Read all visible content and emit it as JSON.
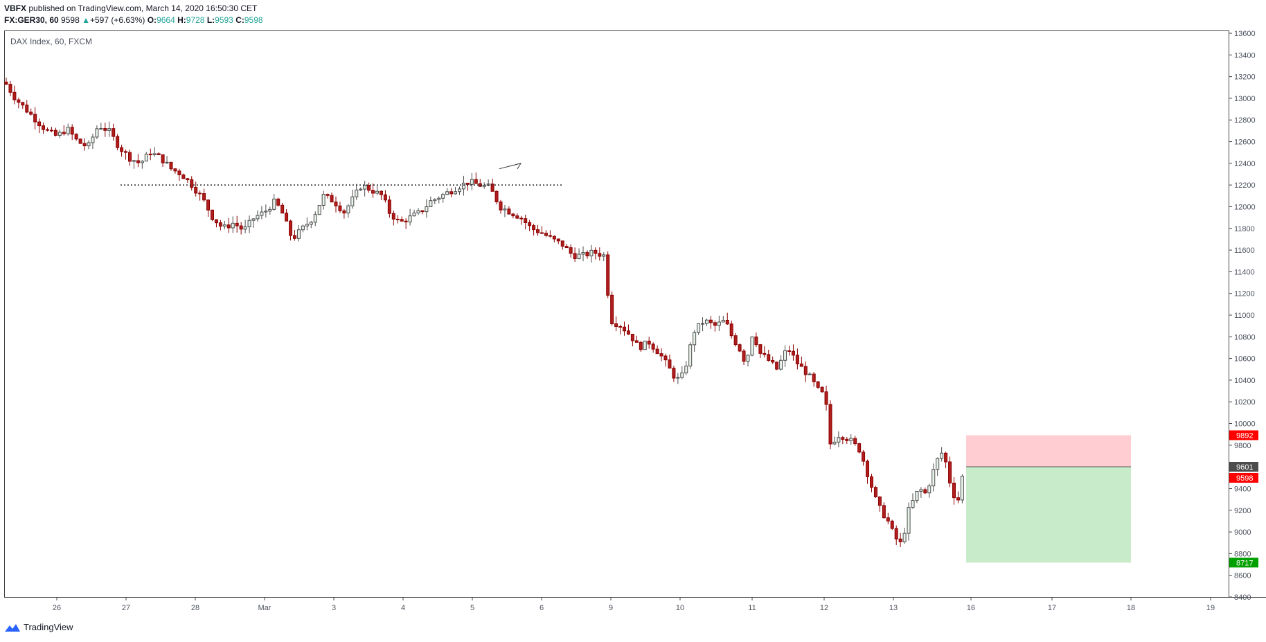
{
  "header": {
    "publisher": "VBFX",
    "published_text": "published on TradingView.com, March 14, 2020 16:50:30 CET",
    "symbol": "FX:GER30, 60",
    "last": "9598",
    "change": "+597 (+6.63%)",
    "open_label": "O:",
    "open": "9664",
    "high_label": "H:",
    "high": "9728",
    "low_label": "L:",
    "low": "9593",
    "close_label": "C:",
    "close": "9598",
    "up_arrow_icon": "triangle-up-icon"
  },
  "pane_title": "DAX Index, 60, FXCM",
  "footer": {
    "brand": "TradingView",
    "logo_icon": "tradingview-logo-icon"
  },
  "colors": {
    "up": "#26a69a",
    "down": "#c0392b",
    "candle_up_fill": "#ffffff",
    "stop_zone": "#ffcdd2",
    "target_zone": "#c8ebc9",
    "stop_badge": "#ff0000",
    "target_badge": "#00a000",
    "entry_badge": "#4c4c4c",
    "last_badge": "#ff0000",
    "axis_text": "#4c525e",
    "border": "#444444"
  },
  "chart_data": {
    "type": "candlestick",
    "title": "DAX Index, 60, FXCM",
    "ylim": [
      8400,
      13600
    ],
    "y_ticks": [
      8400,
      8600,
      8800,
      9000,
      9200,
      9400,
      9600,
      9800,
      10000,
      10200,
      10400,
      10600,
      10800,
      11000,
      11200,
      11400,
      11600,
      11800,
      12000,
      12200,
      12400,
      12600,
      12800,
      13000,
      13200,
      13400,
      13600
    ],
    "x_ticks": [
      {
        "label": "26",
        "x": 0.75
      },
      {
        "label": "27",
        "x": 1.75
      },
      {
        "label": "28",
        "x": 2.75
      },
      {
        "label": "Mar",
        "x": 3.75
      },
      {
        "label": "3",
        "x": 4.75
      },
      {
        "label": "4",
        "x": 5.75
      },
      {
        "label": "5",
        "x": 6.75
      },
      {
        "label": "6",
        "x": 7.75
      },
      {
        "label": "9",
        "x": 8.75
      },
      {
        "label": "10",
        "x": 9.75
      },
      {
        "label": "11",
        "x": 10.79
      },
      {
        "label": "12",
        "x": 11.83
      },
      {
        "label": "13",
        "x": 12.83
      },
      {
        "label": "16",
        "x": 13.95
      },
      {
        "label": "17",
        "x": 15.12
      },
      {
        "label": "18",
        "x": 16.26
      },
      {
        "label": "19",
        "x": 17.41
      }
    ],
    "x_range": [
      0,
      17.7
    ],
    "resistance_line": {
      "price": 12200,
      "x_start": 1.67,
      "x_end": 8.05,
      "style": "dotted"
    },
    "annotation_arrow": {
      "x1": 7.14,
      "y1": 12350,
      "x2": 7.45,
      "y2": 12400
    },
    "position": {
      "side": "short",
      "entry": 9601,
      "stop": 9892,
      "target": 8717,
      "x_start": 13.88,
      "x_end": 16.26
    },
    "price_badges": [
      {
        "label": "9892",
        "price": 9892,
        "kind": "stop_badge"
      },
      {
        "label": "9601",
        "price": 9601,
        "kind": "entry_badge"
      },
      {
        "label": "9598",
        "price": 9598,
        "kind": "last_badge"
      },
      {
        "label": "8717",
        "price": 8717,
        "kind": "target_badge"
      }
    ],
    "path": [
      [
        0.0,
        13150
      ],
      [
        0.15,
        13000
      ],
      [
        0.3,
        12900
      ],
      [
        0.45,
        12800
      ],
      [
        0.6,
        12700
      ],
      [
        0.75,
        12650
      ],
      [
        0.9,
        12720
      ],
      [
        1.05,
        12600
      ],
      [
        1.2,
        12550
      ],
      [
        1.35,
        12750
      ],
      [
        1.5,
        12700
      ],
      [
        1.65,
        12550
      ],
      [
        1.8,
        12450
      ],
      [
        1.95,
        12400
      ],
      [
        2.1,
        12500
      ],
      [
        2.25,
        12450
      ],
      [
        2.4,
        12350
      ],
      [
        2.55,
        12300
      ],
      [
        2.7,
        12200
      ],
      [
        2.85,
        12080
      ],
      [
        3.0,
        11900
      ],
      [
        3.15,
        11800
      ],
      [
        3.3,
        11850
      ],
      [
        3.45,
        11780
      ],
      [
        3.6,
        11900
      ],
      [
        3.75,
        11950
      ],
      [
        3.9,
        12050
      ],
      [
        4.0,
        11950
      ],
      [
        4.15,
        11700
      ],
      [
        4.3,
        11800
      ],
      [
        4.45,
        11900
      ],
      [
        4.6,
        12100
      ],
      [
        4.75,
        12050
      ],
      [
        4.9,
        11950
      ],
      [
        5.05,
        12100
      ],
      [
        5.15,
        12200
      ],
      [
        5.3,
        12150
      ],
      [
        5.45,
        12100
      ],
      [
        5.55,
        11950
      ],
      [
        5.7,
        11850
      ],
      [
        5.85,
        11900
      ],
      [
        6.0,
        11950
      ],
      [
        6.15,
        12050
      ],
      [
        6.3,
        12100
      ],
      [
        6.45,
        12150
      ],
      [
        6.6,
        12200
      ],
      [
        6.7,
        12230
      ],
      [
        6.85,
        12200
      ],
      [
        7.0,
        12180
      ],
      [
        7.15,
        12000
      ],
      [
        7.3,
        11950
      ],
      [
        7.45,
        11900
      ],
      [
        7.6,
        11800
      ],
      [
        7.75,
        11760
      ],
      [
        7.9,
        11700
      ],
      [
        8.05,
        11650
      ],
      [
        8.2,
        11550
      ],
      [
        8.35,
        11550
      ],
      [
        8.5,
        11580
      ],
      [
        8.65,
        11550
      ],
      [
        8.75,
        10950
      ],
      [
        8.9,
        10900
      ],
      [
        9.05,
        10800
      ],
      [
        9.15,
        10700
      ],
      [
        9.3,
        10750
      ],
      [
        9.45,
        10650
      ],
      [
        9.55,
        10550
      ],
      [
        9.7,
        10400
      ],
      [
        9.8,
        10450
      ],
      [
        9.95,
        10850
      ],
      [
        10.1,
        10950
      ],
      [
        10.25,
        10900
      ],
      [
        10.4,
        10950
      ],
      [
        10.5,
        10800
      ],
      [
        10.6,
        10700
      ],
      [
        10.7,
        10550
      ],
      [
        10.8,
        10850
      ],
      [
        10.9,
        10650
      ],
      [
        11.0,
        10600
      ],
      [
        11.15,
        10500
      ],
      [
        11.3,
        10700
      ],
      [
        11.45,
        10550
      ],
      [
        11.6,
        10450
      ],
      [
        11.75,
        10300
      ],
      [
        11.85,
        10250
      ],
      [
        11.9,
        9800
      ],
      [
        12.05,
        9900
      ],
      [
        12.2,
        9850
      ],
      [
        12.35,
        9750
      ],
      [
        12.5,
        9450
      ],
      [
        12.6,
        9250
      ],
      [
        12.75,
        9100
      ],
      [
        12.85,
        8950
      ],
      [
        12.95,
        8880
      ],
      [
        13.05,
        9200
      ],
      [
        13.2,
        9400
      ],
      [
        13.3,
        9350
      ],
      [
        13.45,
        9650
      ],
      [
        13.55,
        9750
      ],
      [
        13.65,
        9450
      ],
      [
        13.75,
        9250
      ],
      [
        13.85,
        9598
      ]
    ]
  }
}
